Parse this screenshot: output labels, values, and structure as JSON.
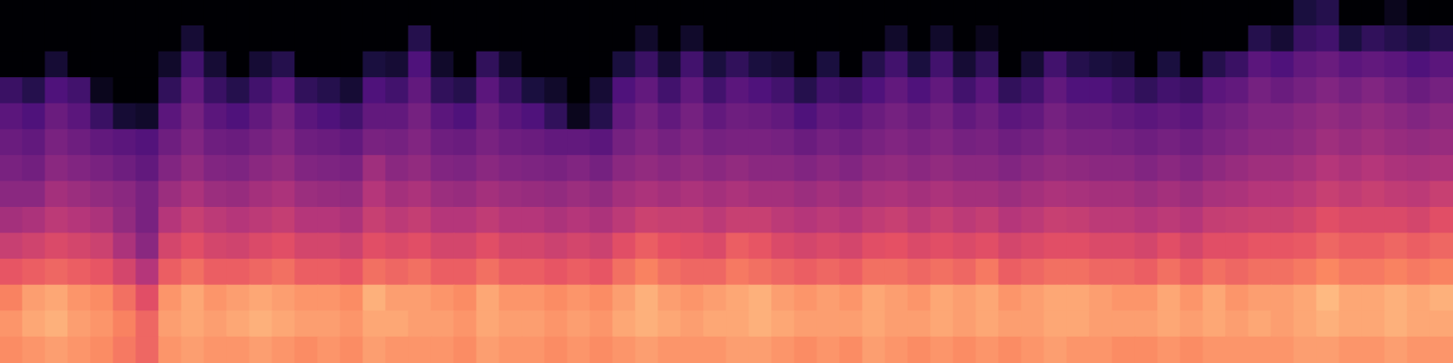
{
  "chart_data": {
    "type": "heatmap",
    "tick_labels": false,
    "color_range": [
      0,
      100
    ],
    "cells": [
      [
        0,
        0,
        0,
        0,
        0,
        0,
        0,
        0,
        0,
        0,
        0,
        0,
        0,
        0,
        0,
        0,
        0,
        0,
        0,
        0,
        0,
        0,
        0,
        0,
        0,
        0,
        0,
        0,
        0,
        0,
        0,
        0,
        0,
        0,
        0,
        0,
        0,
        0,
        0,
        0,
        0,
        0,
        0,
        0,
        0,
        0,
        0,
        0,
        0,
        0,
        0,
        0,
        0,
        0,
        0,
        0,
        0,
        12,
        15,
        0,
        0,
        5,
        0,
        0
      ],
      [
        0,
        0,
        0,
        0,
        0,
        0,
        0,
        0,
        10,
        0,
        0,
        0,
        0,
        0,
        0,
        0,
        0,
        0,
        15,
        0,
        0,
        0,
        0,
        0,
        0,
        0,
        0,
        0,
        8,
        0,
        8,
        0,
        0,
        0,
        0,
        0,
        0,
        0,
        0,
        8,
        0,
        8,
        0,
        5,
        0,
        0,
        0,
        0,
        0,
        0,
        0,
        0,
        0,
        0,
        0,
        15,
        10,
        20,
        22,
        12,
        18,
        15,
        12,
        15
      ],
      [
        0,
        0,
        10,
        0,
        0,
        0,
        0,
        8,
        22,
        10,
        0,
        10,
        15,
        0,
        0,
        0,
        12,
        10,
        25,
        8,
        0,
        18,
        8,
        0,
        0,
        0,
        0,
        12,
        20,
        10,
        22,
        12,
        18,
        12,
        10,
        0,
        12,
        0,
        15,
        22,
        12,
        22,
        10,
        18,
        0,
        10,
        22,
        15,
        12,
        10,
        0,
        12,
        0,
        15,
        20,
        28,
        25,
        30,
        32,
        28,
        30,
        28,
        25,
        28
      ],
      [
        20,
        15,
        25,
        22,
        5,
        0,
        0,
        18,
        30,
        20,
        15,
        22,
        28,
        18,
        15,
        10,
        25,
        22,
        30,
        18,
        15,
        28,
        20,
        12,
        8,
        0,
        10,
        25,
        30,
        22,
        30,
        22,
        28,
        25,
        22,
        15,
        22,
        20,
        25,
        30,
        25,
        30,
        22,
        28,
        18,
        22,
        30,
        25,
        25,
        22,
        18,
        22,
        20,
        28,
        30,
        35,
        32,
        35,
        38,
        35,
        38,
        35,
        32,
        35
      ],
      [
        28,
        25,
        32,
        28,
        20,
        10,
        8,
        28,
        35,
        28,
        25,
        30,
        35,
        28,
        25,
        22,
        30,
        30,
        35,
        28,
        25,
        33,
        28,
        25,
        18,
        5,
        15,
        30,
        35,
        30,
        35,
        30,
        33,
        32,
        30,
        25,
        30,
        28,
        32,
        35,
        32,
        35,
        30,
        33,
        28,
        30,
        35,
        32,
        32,
        30,
        28,
        30,
        28,
        33,
        35,
        38,
        38,
        40,
        42,
        40,
        42,
        40,
        38,
        40
      ],
      [
        32,
        30,
        36,
        33,
        30,
        28,
        26,
        33,
        38,
        33,
        32,
        35,
        38,
        33,
        32,
        30,
        36,
        35,
        38,
        33,
        32,
        36,
        33,
        32,
        30,
        30,
        28,
        35,
        38,
        35,
        38,
        35,
        36,
        36,
        35,
        32,
        35,
        33,
        36,
        38,
        36,
        38,
        35,
        36,
        33,
        35,
        38,
        36,
        36,
        35,
        33,
        35,
        33,
        36,
        38,
        40,
        40,
        42,
        45,
        43,
        45,
        43,
        42,
        43
      ],
      [
        36,
        34,
        40,
        38,
        36,
        33,
        30,
        38,
        42,
        38,
        37,
        40,
        42,
        38,
        37,
        36,
        45,
        40,
        42,
        38,
        37,
        40,
        38,
        37,
        36,
        38,
        35,
        40,
        42,
        40,
        42,
        40,
        42,
        40,
        40,
        38,
        40,
        38,
        41,
        42,
        40,
        42,
        40,
        40,
        38,
        40,
        42,
        41,
        40,
        40,
        38,
        40,
        38,
        41,
        43,
        45,
        45,
        47,
        50,
        48,
        50,
        48,
        47,
        48
      ],
      [
        40,
        40,
        46,
        44,
        42,
        40,
        36,
        44,
        48,
        44,
        43,
        46,
        48,
        44,
        43,
        42,
        50,
        46,
        48,
        44,
        43,
        46,
        44,
        43,
        42,
        44,
        42,
        46,
        48,
        46,
        48,
        46,
        48,
        46,
        46,
        44,
        46,
        44,
        47,
        48,
        46,
        48,
        46,
        46,
        44,
        46,
        48,
        47,
        46,
        46,
        44,
        46,
        44,
        47,
        48,
        50,
        50,
        52,
        55,
        53,
        55,
        53,
        52,
        55
      ],
      [
        46,
        48,
        52,
        50,
        48,
        42,
        36,
        50,
        55,
        52,
        50,
        52,
        54,
        50,
        50,
        48,
        55,
        52,
        54,
        50,
        50,
        53,
        50,
        50,
        48,
        50,
        48,
        52,
        56,
        55,
        55,
        52,
        55,
        55,
        52,
        50,
        52,
        50,
        53,
        55,
        52,
        55,
        52,
        54,
        50,
        52,
        55,
        54,
        52,
        52,
        50,
        52,
        50,
        54,
        55,
        56,
        56,
        58,
        62,
        60,
        60,
        60,
        58,
        62
      ],
      [
        55,
        57,
        60,
        58,
        56,
        48,
        40,
        58,
        62,
        58,
        57,
        60,
        62,
        58,
        58,
        56,
        62,
        60,
        62,
        58,
        58,
        62,
        58,
        58,
        56,
        58,
        56,
        62,
        66,
        63,
        62,
        60,
        66,
        64,
        60,
        58,
        60,
        58,
        62,
        63,
        60,
        62,
        60,
        62,
        58,
        60,
        62,
        62,
        60,
        60,
        58,
        62,
        58,
        62,
        62,
        64,
        64,
        65,
        68,
        66,
        66,
        68,
        66,
        68
      ],
      [
        64,
        66,
        68,
        66,
        64,
        58,
        50,
        66,
        70,
        66,
        66,
        68,
        70,
        66,
        66,
        64,
        70,
        68,
        70,
        66,
        66,
        70,
        66,
        66,
        64,
        66,
        64,
        70,
        74,
        70,
        68,
        68,
        72,
        70,
        68,
        66,
        68,
        66,
        70,
        70,
        68,
        70,
        68,
        72,
        66,
        68,
        70,
        70,
        68,
        68,
        66,
        70,
        66,
        70,
        68,
        70,
        70,
        72,
        75,
        72,
        72,
        74,
        72,
        74
      ],
      [
        74,
        80,
        82,
        78,
        76,
        70,
        62,
        78,
        82,
        78,
        80,
        82,
        80,
        78,
        78,
        76,
        84,
        80,
        80,
        78,
        76,
        82,
        78,
        78,
        76,
        78,
        76,
        80,
        84,
        80,
        78,
        80,
        82,
        84,
        80,
        78,
        80,
        78,
        82,
        80,
        78,
        82,
        80,
        82,
        78,
        80,
        82,
        82,
        80,
        78,
        78,
        82,
        78,
        82,
        78,
        80,
        80,
        82,
        86,
        82,
        82,
        84,
        82,
        84
      ],
      [
        78,
        82,
        84,
        80,
        78,
        74,
        68,
        80,
        82,
        80,
        82,
        84,
        82,
        80,
        80,
        78,
        82,
        82,
        80,
        80,
        78,
        82,
        80,
        80,
        78,
        80,
        78,
        82,
        84,
        82,
        80,
        82,
        82,
        84,
        82,
        80,
        80,
        80,
        82,
        80,
        80,
        82,
        80,
        82,
        80,
        80,
        82,
        82,
        80,
        80,
        80,
        82,
        80,
        82,
        80,
        82,
        80,
        82,
        84,
        82,
        82,
        84,
        82,
        82
      ],
      [
        76,
        78,
        80,
        78,
        76,
        72,
        68,
        78,
        80,
        78,
        78,
        80,
        78,
        76,
        78,
        76,
        80,
        78,
        78,
        78,
        76,
        80,
        78,
        78,
        76,
        78,
        76,
        78,
        80,
        78,
        78,
        78,
        80,
        80,
        78,
        76,
        78,
        76,
        80,
        78,
        76,
        78,
        76,
        78,
        76,
        78,
        80,
        78,
        78,
        76,
        76,
        78,
        76,
        78,
        78,
        78,
        78,
        80,
        80,
        78,
        78,
        80,
        78,
        78
      ]
    ]
  }
}
